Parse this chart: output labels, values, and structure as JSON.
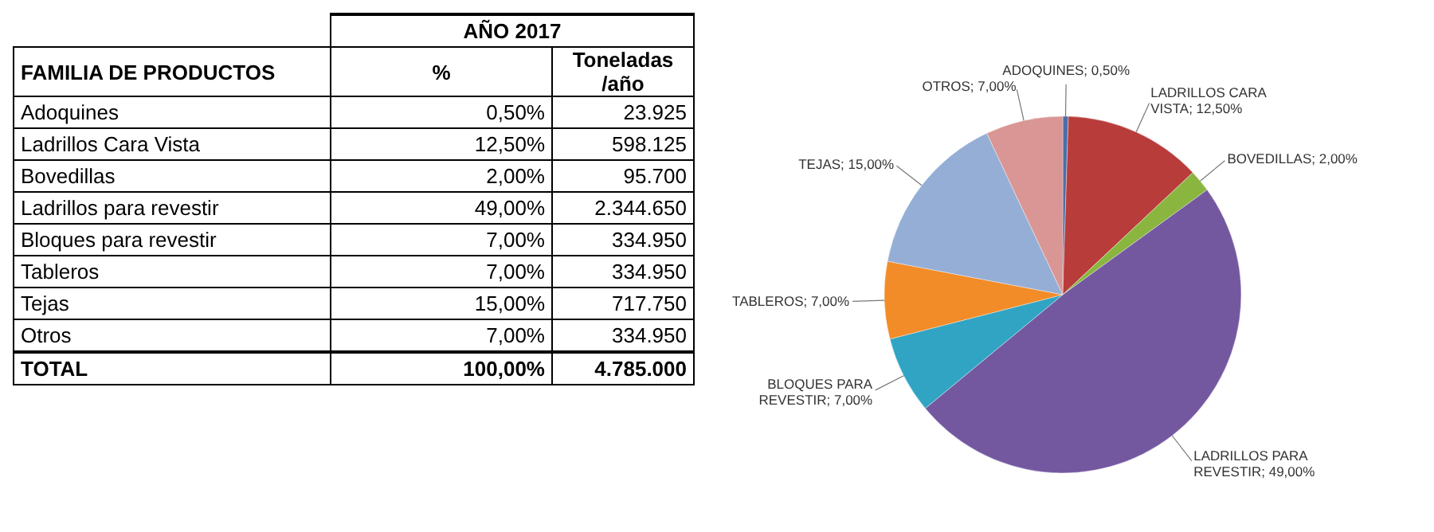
{
  "chart_data": [
    {
      "type": "other",
      "title": "AÑO 2017",
      "annotations": [
        "FAMILIA DE PRODUCTOS",
        "TOTAL",
        "100,00%",
        "4.785.000"
      ],
      "categories": [
        "Adoquines",
        "Ladrillos Cara Vista",
        "Bovedillas",
        "Ladrillos para revestir",
        "Bloques para revestir",
        "Tableros",
        "Tejas",
        "Otros"
      ],
      "series": [
        {
          "name": "%",
          "values": [
            0.5,
            12.5,
            2,
            49,
            7,
            7,
            15,
            7
          ],
          "value_labels": [
            "0,50%",
            "12,50%",
            "2,00%",
            "49,00%",
            "7,00%",
            "7,00%",
            "15,00%",
            "7,00%"
          ]
        },
        {
          "name": "Toneladas /año",
          "values": [
            23925,
            598125,
            95700,
            2344650,
            334950,
            334950,
            717750,
            334950
          ],
          "value_labels": [
            "23.925",
            "598.125",
            "95.700",
            "2.344.650",
            "334.950",
            "334.950",
            "717.750",
            "334.950"
          ]
        }
      ]
    },
    {
      "type": "pie",
      "categories": [
        "ADOQUINES",
        "LADRILLOS CARA VISTA",
        "BOVEDILLAS",
        "LADRILLOS PARA REVESTIR",
        "BLOQUES PARA REVESTIR",
        "TABLEROS",
        "TEJAS",
        "OTROS"
      ],
      "values": [
        0.5,
        12.5,
        2,
        49,
        7,
        7,
        15,
        7
      ],
      "value_labels": [
        "0,50%",
        "12,50%",
        "2,00%",
        "49,00%",
        "7,00%",
        "7,00%",
        "15,00%",
        "7,00%"
      ],
      "colors": [
        "#4a6ea9",
        "#b83c3a",
        "#8ab63f",
        "#7358a0",
        "#31a4c4",
        "#f28c28",
        "#95aed6",
        "#d99694"
      ]
    }
  ]
}
